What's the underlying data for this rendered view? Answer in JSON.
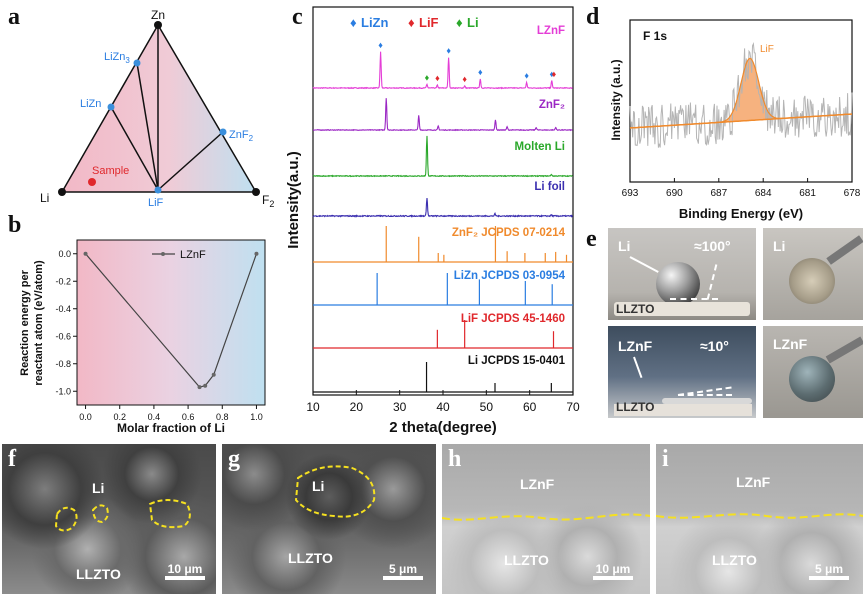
{
  "panels": {
    "a": {
      "label": "a",
      "vertices": {
        "top": "Zn",
        "left": "Li",
        "right": "F2"
      },
      "points": [
        "LiZn3",
        "LiZn",
        "ZnF2",
        "LiF"
      ],
      "sample": "Sample",
      "colors": {
        "pink": "#f2b8c6",
        "blue": "#bfe0f0",
        "point": "#3a8fdc",
        "sample": "#e0282c"
      }
    },
    "b": {
      "label": "b",
      "chart_data": {
        "type": "line",
        "title": "",
        "xlabel": "Molar fraction of Li",
        "ylabel": "Reaction energy per reactant atom (eV/atom)",
        "ylabel_lines": [
          "Reaction energy per",
          "reactant atom (eV/atom)"
        ],
        "xlim": [
          -0.05,
          1.05
        ],
        "ylim": [
          -1.1,
          0.1
        ],
        "xticks": [
          "0.0",
          "0.2",
          "0.4",
          "0.6",
          "0.8",
          "1.0"
        ],
        "yticks": [
          "0.0",
          "-0.2",
          "-0.4",
          "-0.6",
          "-0.8",
          "-1.0"
        ],
        "series": [
          {
            "name": "LZnF",
            "x": [
              0.0,
              0.667,
              0.7,
              0.75,
              1.0
            ],
            "y": [
              0.0,
              -0.97,
              -0.96,
              -0.88,
              0.0
            ]
          }
        ]
      }
    },
    "c": {
      "label": "c",
      "chart_data": {
        "type": "line",
        "xlabel": "2 theta(degree)",
        "ylabel": "Intensity(a.u.)",
        "xlim": [
          10,
          70
        ],
        "xticks": [
          "10",
          "20",
          "30",
          "40",
          "50",
          "60",
          "70"
        ],
        "legend": [
          {
            "marker": "♦",
            "name": "LiZn",
            "color": "#2a7de1"
          },
          {
            "marker": "♦",
            "name": "LiF",
            "color": "#e0282c"
          },
          {
            "marker": "♦",
            "name": "Li",
            "color": "#2aa82a"
          }
        ],
        "series": [
          {
            "name": "LZnF",
            "color": "#e43dd6",
            "peaks": [
              [
                25.6,
                1.0
              ],
              [
                41.3,
                0.85
              ],
              [
                48.6,
                0.25
              ],
              [
                59.3,
                0.15
              ],
              [
                65.1,
                0.2
              ],
              [
                36.3,
                0.1
              ],
              [
                38.7,
                0.08
              ],
              [
                45.0,
                0.06
              ]
            ],
            "markers": [
              {
                "x": 25.6,
                "type": "LiZn"
              },
              {
                "x": 41.3,
                "type": "LiZn"
              },
              {
                "x": 48.6,
                "type": "LiZn"
              },
              {
                "x": 59.3,
                "type": "LiZn"
              },
              {
                "x": 65.1,
                "type": "LiZn"
              },
              {
                "x": 36.3,
                "type": "Li"
              },
              {
                "x": 38.7,
                "type": "LiF"
              },
              {
                "x": 45.0,
                "type": "LiF"
              },
              {
                "x": 65.6,
                "type": "LiF"
              }
            ]
          },
          {
            "name": "ZnF2",
            "color": "#9b27c4",
            "peaks": [
              [
                26.9,
                1.0
              ],
              [
                34.4,
                0.45
              ],
              [
                38.9,
                0.12
              ],
              [
                52.1,
                0.32
              ],
              [
                54.8,
                0.1
              ],
              [
                61.5,
                0.08
              ],
              [
                66.0,
                0.08
              ]
            ]
          },
          {
            "name": "Molten Li",
            "color": "#2aa82a",
            "peaks": [
              [
                36.3,
                1.0
              ],
              [
                65.0,
                0.04
              ]
            ]
          },
          {
            "name": "Li foil",
            "color": "#3b2fb0",
            "peaks": [
              [
                36.3,
                1.0
              ],
              [
                52.0,
                0.12
              ],
              [
                65.0,
                0.06
              ]
            ]
          },
          {
            "name": "ZnF2 JCPDS 07-0214",
            "color": "#f08a2c",
            "sticks": true,
            "peaks": [
              [
                26.9,
                1.0
              ],
              [
                34.4,
                0.7
              ],
              [
                38.9,
                0.25
              ],
              [
                40.2,
                0.2
              ],
              [
                52.1,
                1.0
              ],
              [
                54.8,
                0.3
              ],
              [
                58.9,
                0.25
              ],
              [
                63.6,
                0.25
              ],
              [
                66.0,
                0.28
              ],
              [
                68.5,
                0.2
              ]
            ]
          },
          {
            "name": "LiZn JCPDS 03-0954",
            "color": "#2a7de1",
            "sticks": true,
            "peaks": [
              [
                24.8,
                1.0
              ],
              [
                41.0,
                1.0
              ],
              [
                48.4,
                0.8
              ],
              [
                59.0,
                0.75
              ],
              [
                65.2,
                0.65
              ]
            ]
          },
          {
            "name": "LiF JCPDS 45-1460",
            "color": "#e0282c",
            "sticks": true,
            "peaks": [
              [
                38.7,
                0.65
              ],
              [
                45.0,
                1.0
              ],
              [
                65.5,
                0.6
              ]
            ]
          },
          {
            "name": "Li JCPDS 15-0401",
            "color": "#111111",
            "sticks": true,
            "peaks": [
              [
                36.2,
                1.0
              ],
              [
                52.0,
                0.3
              ],
              [
                65.0,
                0.3
              ]
            ]
          }
        ],
        "series_labels": [
          "LZnF",
          "ZnF₂",
          "Molten Li",
          "Li foil",
          "ZnF₂ JCPDS 07-0214",
          "LiZn JCPDS 03-0954",
          "LiF JCPDS 45-1460",
          "Li JCPDS 15-0401"
        ]
      }
    },
    "d": {
      "label": "d",
      "chart_data": {
        "type": "line",
        "title": "F 1s",
        "xlabel": "Binding Energy (eV)",
        "ylabel": "Intensity (a.u.)",
        "xlim": [
          693,
          678
        ],
        "xticks": [
          "693",
          "690",
          "687",
          "684",
          "681",
          "678"
        ],
        "peak_label": "LiF",
        "peak_center": 684.9,
        "colors": {
          "raw": "#b4b4b4",
          "fit": "#f08a2c"
        }
      }
    },
    "e": {
      "label": "e",
      "top_left": {
        "metal": "Li",
        "angle": "≈100°",
        "substrate": "LLZTO"
      },
      "top_right": {
        "label": "Li"
      },
      "bottom_left": {
        "metal": "LZnF",
        "angle": "≈10°",
        "substrate": "LLZTO"
      },
      "bottom_right": {
        "label": "LZnF"
      }
    },
    "f": {
      "label": "f",
      "region_top": "Li",
      "region_bottom": "LLZTO",
      "scale": "10 μm"
    },
    "g": {
      "label": "g",
      "region_top": "Li",
      "region_bottom": "LLZTO",
      "scale": "5 μm"
    },
    "h": {
      "label": "h",
      "region_top": "LZnF",
      "region_bottom": "LLZTO",
      "scale": "10 μm"
    },
    "i": {
      "label": "i",
      "region_top": "LZnF",
      "region_bottom": "LLZTO",
      "scale": "5 μm"
    }
  }
}
